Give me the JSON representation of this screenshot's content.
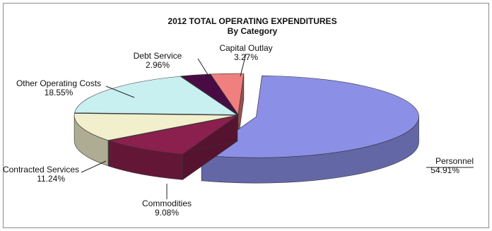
{
  "chart_data": {
    "type": "pie",
    "title": "2012 TOTAL OPERATING EXPENDITURES",
    "subtitle": "By Category",
    "unit": "%",
    "legend": "none",
    "slices": [
      {
        "name": "Personnel",
        "value": 54.91,
        "value_label": "54.91%",
        "color": "#8b8fe6"
      },
      {
        "name": "Commodities",
        "value": 9.08,
        "value_label": "9.08%",
        "color": "#8b1f4d"
      },
      {
        "name": "Contracted Services",
        "value": 11.24,
        "value_label": "11.24%",
        "color": "#f1efcc"
      },
      {
        "name": "Other Operating Costs",
        "value": 18.55,
        "value_label": "18.55%",
        "color": "#c8f0f0"
      },
      {
        "name": "Debt Service",
        "value": 2.96,
        "value_label": "2.96%",
        "color": "#4a0b45"
      },
      {
        "name": "Capital Outlay",
        "value": 3.27,
        "value_label": "3.27%",
        "color": "#f07f7f"
      }
    ]
  }
}
